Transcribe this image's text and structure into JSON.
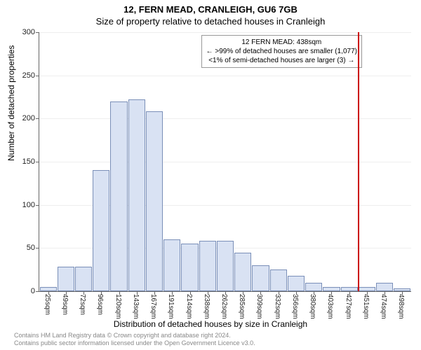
{
  "title_line1": "12, FERN MEAD, CRANLEIGH, GU6 7GB",
  "title_line2": "Size of property relative to detached houses in Cranleigh",
  "ylabel": "Number of detached properties",
  "xlabel": "Distribution of detached houses by size in Cranleigh",
  "callout": {
    "line1": "12 FERN MEAD: 438sqm",
    "line2": "← >99% of detached houses are smaller (1,077)",
    "line3": "<1% of semi-detached houses are larger (3) →",
    "border_color": "#999999",
    "bg_color": "#ffffff"
  },
  "marker_value_sqm": 438,
  "marker_color": "#cc0000",
  "bar_fill": "#d9e2f3",
  "bar_stroke": "#7a8fb8",
  "grid_color": "#eeeeee",
  "axis_color": "#666666",
  "x_start": 13,
  "x_tick_step": 23.6,
  "x_labels": [
    "25sqm",
    "49sqm",
    "72sqm",
    "96sqm",
    "120sqm",
    "143sqm",
    "167sqm",
    "191sqm",
    "214sqm",
    "238sqm",
    "262sqm",
    "285sqm",
    "309sqm",
    "332sqm",
    "356sqm",
    "380sqm",
    "403sqm",
    "427sqm",
    "451sqm",
    "474sqm",
    "498sqm"
  ],
  "values": [
    5,
    28,
    28,
    140,
    220,
    222,
    208,
    60,
    55,
    58,
    58,
    45,
    30,
    25,
    18,
    10,
    5,
    5,
    5,
    10,
    3
  ],
  "y_max": 300,
  "y_tick_step": 50,
  "y_ticks": [
    0,
    50,
    100,
    150,
    200,
    250,
    300
  ],
  "credit_line1": "Contains HM Land Registry data © Crown copyright and database right 2024.",
  "credit_line2": "Contains public sector information licensed under the Open Government Licence v3.0."
}
